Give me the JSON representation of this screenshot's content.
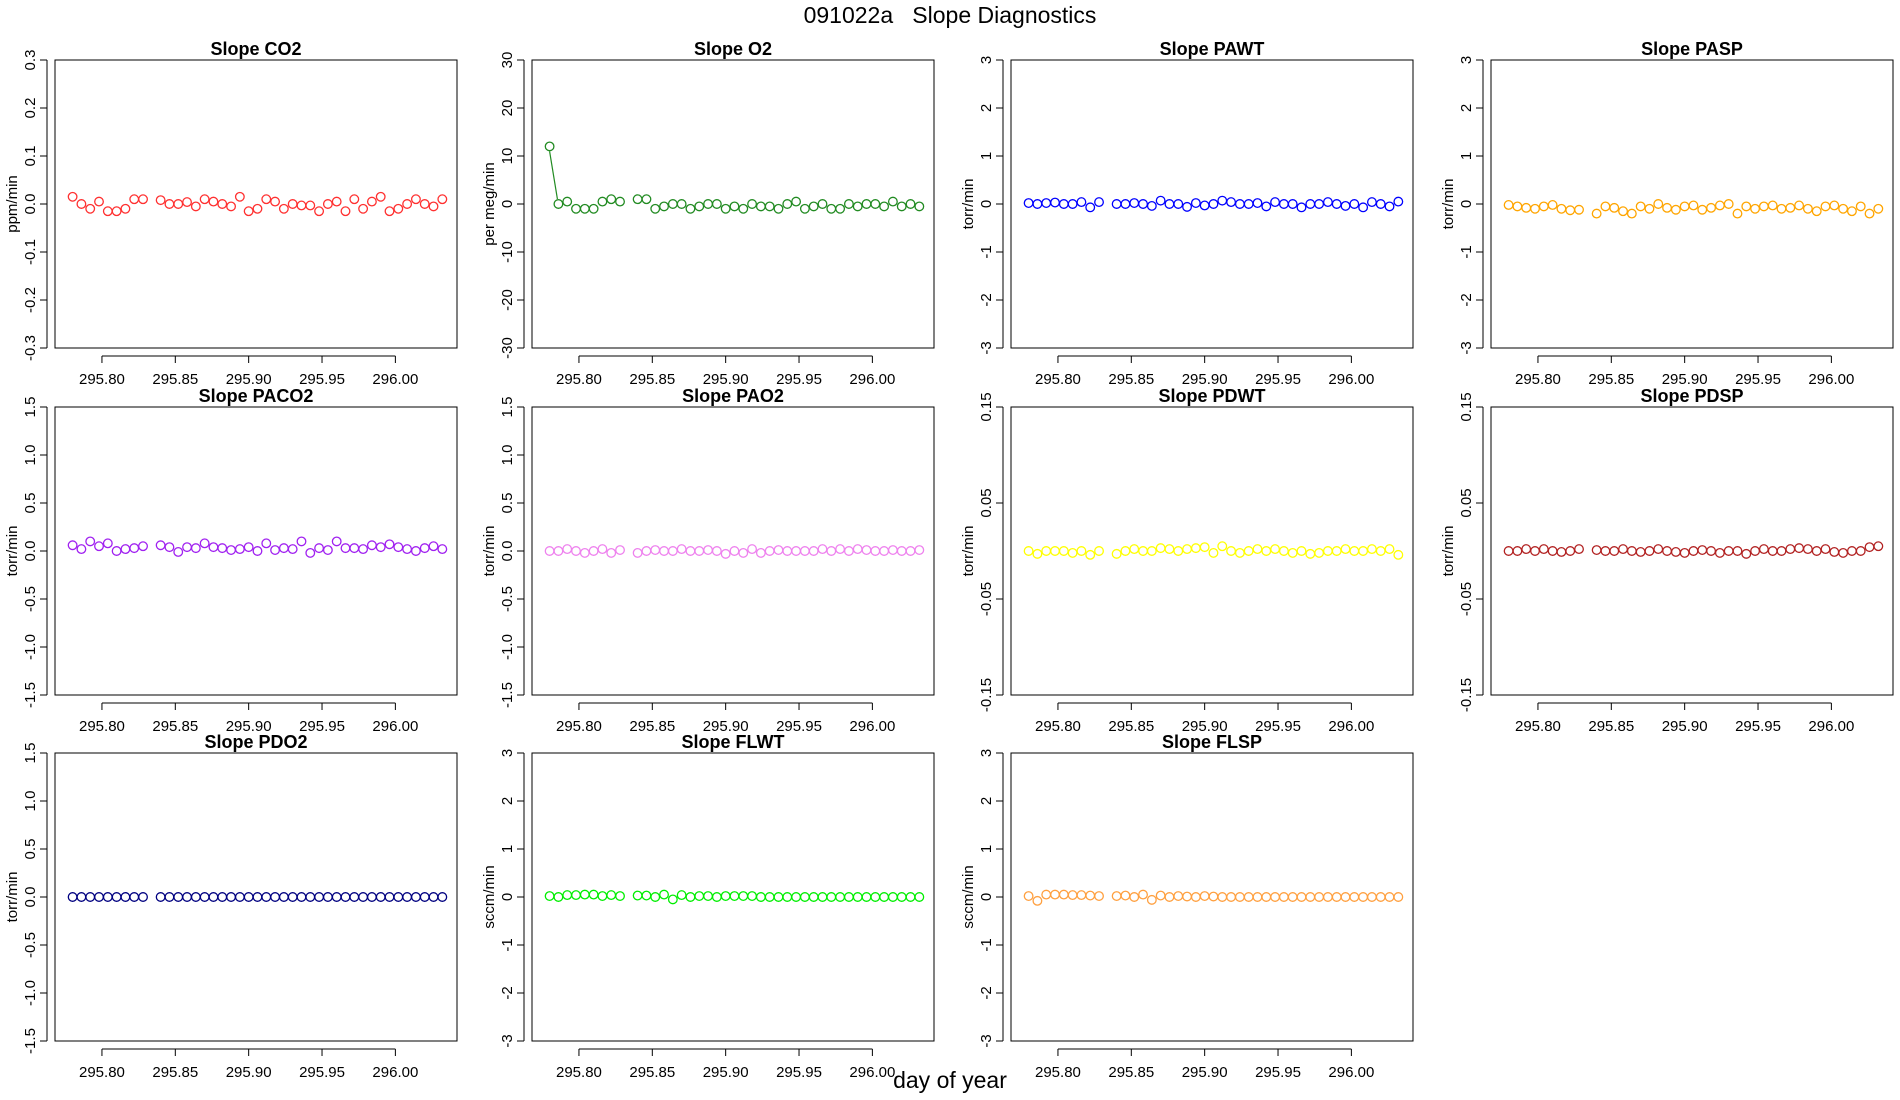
{
  "title": "091022a   Slope Diagnostics",
  "xlabel": "day of year",
  "x_ticks": [
    "295.80",
    "295.85",
    "295.90",
    "295.95",
    "296.00"
  ],
  "x_tick_values": [
    295.8,
    295.85,
    295.9,
    295.95,
    296.0
  ],
  "xlim": [
    295.768,
    296.042
  ],
  "x": [
    295.78,
    295.786,
    295.792,
    295.798,
    295.804,
    295.81,
    295.816,
    295.822,
    295.828,
    295.84,
    295.846,
    295.852,
    295.858,
    295.864,
    295.87,
    295.876,
    295.882,
    295.888,
    295.894,
    295.9,
    295.906,
    295.912,
    295.918,
    295.924,
    295.93,
    295.936,
    295.942,
    295.948,
    295.954,
    295.96,
    295.966,
    295.972,
    295.978,
    295.984,
    295.99,
    295.996,
    296.002,
    296.008,
    296.014,
    296.02,
    296.026,
    296.032
  ],
  "chart_data": [
    {
      "type": "scatter",
      "title": "Slope CO2",
      "ylabel": "ppm/min",
      "ylim": [
        -0.3,
        0.3
      ],
      "y_ticks": [
        "-0.3",
        "-0.2",
        "-0.1",
        "0.0",
        "0.1",
        "0.2",
        "0.3"
      ],
      "color": "#ff3030",
      "values": [
        0.015,
        0.0,
        -0.01,
        0.005,
        -0.015,
        -0.015,
        -0.01,
        0.01,
        0.01,
        0.008,
        0.0,
        0.0,
        0.004,
        -0.005,
        0.01,
        0.005,
        0.0,
        -0.005,
        0.015,
        -0.015,
        -0.01,
        0.01,
        0.005,
        -0.01,
        0.0,
        -0.003,
        -0.003,
        -0.015,
        0.0,
        0.005,
        -0.015,
        0.01,
        -0.01,
        0.005,
        0.015,
        -0.015,
        -0.01,
        0.0,
        0.01,
        0.0,
        -0.005,
        0.01
      ]
    },
    {
      "type": "scatter",
      "title": "Slope O2",
      "ylabel": "per meg/min",
      "ylim": [
        -30,
        30
      ],
      "y_ticks": [
        "-30",
        "-20",
        "-10",
        "0",
        "10",
        "20",
        "30"
      ],
      "color": "#228b22",
      "values": [
        12,
        0,
        0.5,
        -1,
        -1,
        -1,
        0.5,
        1,
        0.5,
        1,
        1,
        -1,
        -0.5,
        0,
        0,
        -1,
        -0.5,
        0,
        0,
        -1,
        -0.5,
        -1,
        0,
        -0.5,
        -0.5,
        -1,
        0,
        0.5,
        -1,
        -0.5,
        0,
        -1,
        -1,
        0,
        -0.5,
        0,
        0,
        -0.5,
        0.5,
        -0.5,
        0,
        -0.5
      ]
    },
    {
      "type": "scatter",
      "title": "Slope PAWT",
      "ylabel": "torr/min",
      "ylim": [
        -3,
        3
      ],
      "y_ticks": [
        "-3",
        "-2",
        "-1",
        "0",
        "1",
        "2",
        "3"
      ],
      "color": "#0000ff",
      "values": [
        0.02,
        0.0,
        0.02,
        0.03,
        0.0,
        0.0,
        0.04,
        -0.07,
        0.04,
        0.0,
        0.0,
        0.02,
        0.0,
        -0.04,
        0.07,
        0.0,
        0.0,
        -0.06,
        0.02,
        -0.03,
        0.0,
        0.07,
        0.04,
        0.0,
        0.0,
        0.02,
        -0.05,
        0.04,
        0.0,
        0.0,
        -0.07,
        0.0,
        0.0,
        0.04,
        0.0,
        -0.04,
        0.0,
        -0.07,
        0.04,
        0.0,
        -0.05,
        0.05
      ]
    },
    {
      "type": "scatter",
      "title": "Slope PASP",
      "ylabel": "torr/min",
      "ylim": [
        -3,
        3
      ],
      "y_ticks": [
        "-3",
        "-2",
        "-1",
        "0",
        "1",
        "2",
        "3"
      ],
      "color": "#ffa500",
      "values": [
        -0.02,
        -0.05,
        -0.08,
        -0.1,
        -0.05,
        -0.02,
        -0.1,
        -0.13,
        -0.12,
        -0.2,
        -0.05,
        -0.08,
        -0.15,
        -0.2,
        -0.05,
        -0.1,
        0.0,
        -0.08,
        -0.12,
        -0.05,
        -0.03,
        -0.12,
        -0.08,
        -0.03,
        0.0,
        -0.2,
        -0.05,
        -0.1,
        -0.05,
        -0.03,
        -0.1,
        -0.08,
        -0.03,
        -0.1,
        -0.15,
        -0.05,
        -0.03,
        -0.1,
        -0.15,
        -0.05,
        -0.2,
        -0.1
      ]
    },
    {
      "type": "scatter",
      "title": "Slope PACO2",
      "ylabel": "torr/min",
      "ylim": [
        -1.5,
        1.5
      ],
      "y_ticks": [
        "-1.5",
        "-1.0",
        "-0.5",
        "0.0",
        "0.5",
        "1.0",
        "1.5"
      ],
      "color": "#a020f0",
      "values": [
        0.06,
        0.02,
        0.1,
        0.05,
        0.08,
        0.0,
        0.02,
        0.03,
        0.05,
        0.06,
        0.04,
        -0.01,
        0.04,
        0.03,
        0.08,
        0.04,
        0.03,
        0.01,
        0.02,
        0.04,
        0.0,
        0.08,
        0.01,
        0.03,
        0.02,
        0.1,
        -0.02,
        0.03,
        0.01,
        0.1,
        0.03,
        0.03,
        0.02,
        0.06,
        0.04,
        0.07,
        0.04,
        0.02,
        0.0,
        0.03,
        0.05,
        0.02
      ]
    },
    {
      "type": "scatter",
      "title": "Slope PAO2",
      "ylabel": "torr/min",
      "ylim": [
        -1.5,
        1.5
      ],
      "y_ticks": [
        "-1.5",
        "-1.0",
        "-0.5",
        "0.0",
        "0.5",
        "1.0",
        "1.5"
      ],
      "color": "#ee82ee",
      "values": [
        0.0,
        0.0,
        0.02,
        0.0,
        -0.02,
        0.0,
        0.02,
        -0.02,
        0.01,
        -0.02,
        0.0,
        0.01,
        0.0,
        0.0,
        0.02,
        0.0,
        0.0,
        0.01,
        0.0,
        -0.03,
        0.0,
        -0.02,
        0.02,
        -0.02,
        0.0,
        0.01,
        0.0,
        0.0,
        0.0,
        0.0,
        0.02,
        0.0,
        0.02,
        0.0,
        0.02,
        0.01,
        0.0,
        0.0,
        0.01,
        0.0,
        0.0,
        0.01
      ]
    },
    {
      "type": "scatter",
      "title": "Slope PDWT",
      "ylabel": "torr/min",
      "ylim": [
        -0.15,
        0.15
      ],
      "y_ticks": [
        "-0.15",
        "-0.05",
        "0.05",
        "0.15"
      ],
      "color": "#ffff00",
      "values": [
        0.0,
        -0.003,
        0.0,
        0.0,
        0.0,
        -0.002,
        0.0,
        -0.004,
        0.0,
        -0.003,
        0.0,
        0.002,
        0.0,
        0.0,
        0.003,
        0.002,
        0.0,
        0.002,
        0.003,
        0.004,
        -0.002,
        0.005,
        0.0,
        -0.002,
        0.0,
        0.002,
        0.0,
        0.002,
        0.0,
        -0.002,
        0.0,
        -0.003,
        -0.002,
        0.0,
        0.0,
        0.002,
        0.0,
        0.0,
        0.002,
        0.0,
        0.002,
        -0.004
      ]
    },
    {
      "type": "scatter",
      "title": "Slope PDSP",
      "ylabel": "torr/min",
      "ylim": [
        -0.15,
        0.15
      ],
      "y_ticks": [
        "-0.15",
        "-0.05",
        "0.05",
        "0.15"
      ],
      "color": "#b22222",
      "values": [
        0.0,
        0.0,
        0.002,
        0.0,
        0.002,
        0.0,
        -0.001,
        0.0,
        0.002,
        0.001,
        0.0,
        0.0,
        0.002,
        0.0,
        -0.001,
        0.0,
        0.002,
        0.0,
        -0.001,
        -0.002,
        0.0,
        0.001,
        0.0,
        -0.002,
        0.0,
        0.0,
        -0.003,
        0.0,
        0.002,
        0.0,
        0.0,
        0.002,
        0.003,
        0.002,
        0.0,
        0.002,
        -0.001,
        -0.002,
        0.0,
        0.0,
        0.004,
        0.005
      ]
    },
    {
      "type": "scatter",
      "title": "Slope PDO2",
      "ylabel": "torr/min",
      "ylim": [
        -1.5,
        1.5
      ],
      "y_ticks": [
        "-1.5",
        "-1.0",
        "-0.5",
        "0.0",
        "0.5",
        "1.0",
        "1.5"
      ],
      "color": "#000080",
      "values": [
        0,
        0,
        0,
        0,
        0,
        0,
        0,
        0,
        0,
        0,
        0,
        0,
        0,
        0,
        0,
        0,
        0,
        0,
        0,
        0,
        0,
        0,
        0,
        0,
        0,
        0,
        0,
        0,
        0,
        0,
        0,
        0,
        0,
        0,
        0,
        0,
        0,
        0,
        0,
        0,
        0,
        0
      ]
    },
    {
      "type": "scatter",
      "title": "Slope FLWT",
      "ylabel": "sccm/min",
      "ylim": [
        -3,
        3
      ],
      "y_ticks": [
        "-3",
        "-2",
        "-1",
        "0",
        "1",
        "2",
        "3"
      ],
      "color": "#00ee00",
      "values": [
        0.02,
        0.0,
        0.04,
        0.04,
        0.05,
        0.05,
        0.02,
        0.04,
        0.02,
        0.03,
        0.03,
        0.0,
        0.05,
        -0.05,
        0.04,
        0.0,
        0.02,
        0.02,
        0.0,
        0.02,
        0.02,
        0.02,
        0.02,
        0.0,
        0.0,
        0.0,
        0.0,
        0.0,
        0.0,
        0.0,
        0.0,
        0.0,
        0.0,
        0.0,
        0.0,
        0.0,
        0.0,
        0.0,
        0.0,
        0.0,
        0.0,
        0.0
      ]
    },
    {
      "type": "scatter",
      "title": "Slope FLSP",
      "ylabel": "sccm/min",
      "ylim": [
        -3,
        3
      ],
      "y_ticks": [
        "-3",
        "-2",
        "-1",
        "0",
        "1",
        "2",
        "3"
      ],
      "color": "#ffa040",
      "values": [
        0.02,
        -0.08,
        0.05,
        0.05,
        0.05,
        0.04,
        0.04,
        0.03,
        0.02,
        0.02,
        0.03,
        0.0,
        0.05,
        -0.06,
        0.03,
        0.0,
        0.02,
        0.01,
        0.0,
        0.02,
        0.01,
        0.0,
        0.0,
        0.0,
        0.0,
        0.0,
        0.0,
        0.0,
        0.0,
        0.0,
        0.0,
        0.0,
        0.0,
        0.0,
        0.0,
        0.0,
        0.0,
        0.0,
        0.0,
        0.0,
        0.0,
        0.0
      ]
    }
  ]
}
